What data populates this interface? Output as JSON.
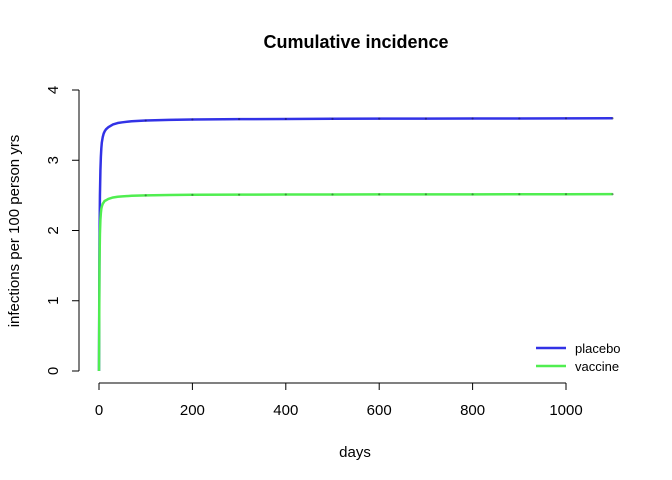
{
  "chart_data": {
    "type": "line",
    "title": "Cumulative incidence",
    "xlabel": "days",
    "ylabel": "infections per 100 person yrs",
    "xlim": [
      0,
      1100
    ],
    "ylim": [
      0,
      4
    ],
    "xticks": [
      0,
      200,
      400,
      600,
      800,
      1000
    ],
    "yticks": [
      0,
      1,
      2,
      3,
      4
    ],
    "grid": false,
    "legend_position": "bottom-right",
    "series": [
      {
        "name": "placebo",
        "color": "#3232e6",
        "x": [
          0,
          1,
          2,
          3,
          4,
          5,
          6,
          8,
          10,
          12,
          15,
          20,
          25,
          30,
          40,
          50,
          70,
          100,
          150,
          200,
          300,
          400,
          500,
          600,
          700,
          800,
          900,
          1000,
          1100
        ],
        "y": [
          0,
          1.8,
          2.5,
          2.85,
          3.05,
          3.17,
          3.25,
          3.33,
          3.38,
          3.41,
          3.44,
          3.47,
          3.49,
          3.51,
          3.53,
          3.54,
          3.555,
          3.565,
          3.575,
          3.58,
          3.585,
          3.588,
          3.59,
          3.592,
          3.593,
          3.594,
          3.595,
          3.596,
          3.597
        ]
      },
      {
        "name": "vaccine",
        "color": "#50ee50",
        "x": [
          0,
          1,
          2,
          3,
          4,
          5,
          6,
          8,
          10,
          12,
          15,
          20,
          25,
          30,
          40,
          50,
          70,
          100,
          150,
          200,
          300,
          400,
          500,
          600,
          700,
          800,
          900,
          1000,
          1100
        ],
        "y": [
          0,
          1.5,
          1.95,
          2.15,
          2.25,
          2.31,
          2.34,
          2.38,
          2.4,
          2.42,
          2.43,
          2.45,
          2.46,
          2.47,
          2.48,
          2.485,
          2.495,
          2.5,
          2.505,
          2.508,
          2.51,
          2.512,
          2.513,
          2.514,
          2.515,
          2.515,
          2.516,
          2.516,
          2.517
        ]
      }
    ]
  }
}
